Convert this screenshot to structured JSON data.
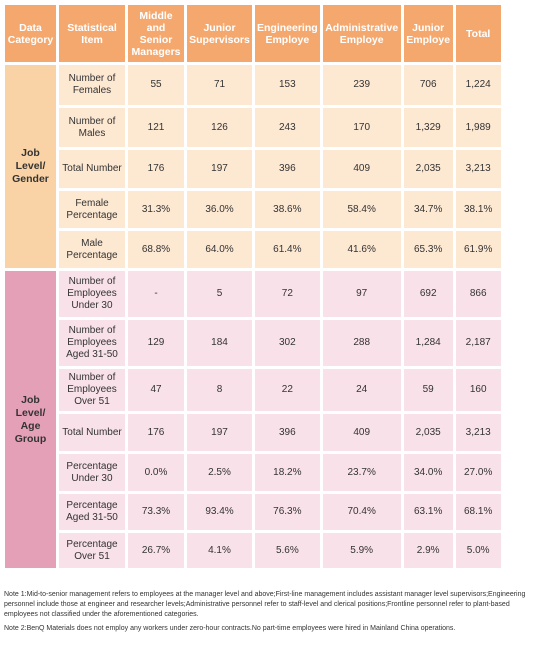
{
  "header": {
    "columns": [
      "Data Category",
      "Statistical Item",
      "Middle and Senior Managers",
      "Junior Supervisors",
      "Engineering Employe",
      "Administrative Employe",
      "Junior Employe",
      "Total"
    ]
  },
  "groups": [
    {
      "category": "Job Level/ Gender",
      "rows": [
        [
          "Number of Females",
          "55",
          "71",
          "153",
          "239",
          "706",
          "1,224"
        ],
        [
          "Number of Males",
          "121",
          "126",
          "243",
          "170",
          "1,329",
          "1,989"
        ],
        [
          "Total Number",
          "176",
          "197",
          "396",
          "409",
          "2,035",
          "3,213"
        ],
        [
          "Female Percentage",
          "31.3%",
          "36.0%",
          "38.6%",
          "58.4%",
          "34.7%",
          "38.1%"
        ],
        [
          "Male Percentage",
          "68.8%",
          "64.0%",
          "61.4%",
          "41.6%",
          "65.3%",
          "61.9%"
        ]
      ]
    },
    {
      "category": "Job Level/ Age Group",
      "rows": [
        [
          "Number of Employees Under 30",
          "-",
          "5",
          "72",
          "97",
          "692",
          "866"
        ],
        [
          "Number of Employees Aged 31-50",
          "129",
          "184",
          "302",
          "288",
          "1,284",
          "2,187"
        ],
        [
          "Number of Employees Over 51",
          "47",
          "8",
          "22",
          "24",
          "59",
          "160"
        ],
        [
          "Total Number",
          "176",
          "197",
          "396",
          "409",
          "2,035",
          "3,213"
        ],
        [
          "Percentage Under 30",
          "0.0%",
          "2.5%",
          "18.2%",
          "23.7%",
          "34.0%",
          "27.0%"
        ],
        [
          "Percentage Aged 31-50",
          "73.3%",
          "93.4%",
          "76.3%",
          "70.4%",
          "63.1%",
          "68.1%"
        ],
        [
          "Percentage Over 51",
          "26.7%",
          "4.1%",
          "5.6%",
          "5.9%",
          "2.9%",
          "5.0%"
        ]
      ]
    }
  ],
  "notes": [
    "Note 1:Mid-to-senior management refers to employees at the manager level and above;First-line management includes assistant manager level supervisors;Engineering personnel include those at engineer and researcher levels;Administrative personnel refer to staff-level and clerical positions;Frontline personnel refer to plant-based employees not classified under the aforementioned categories.",
    "Note 2:BenQ Materials does not employ any workers under zero-hour contracts.No part-time employees were hired in Mainland China operations."
  ]
}
